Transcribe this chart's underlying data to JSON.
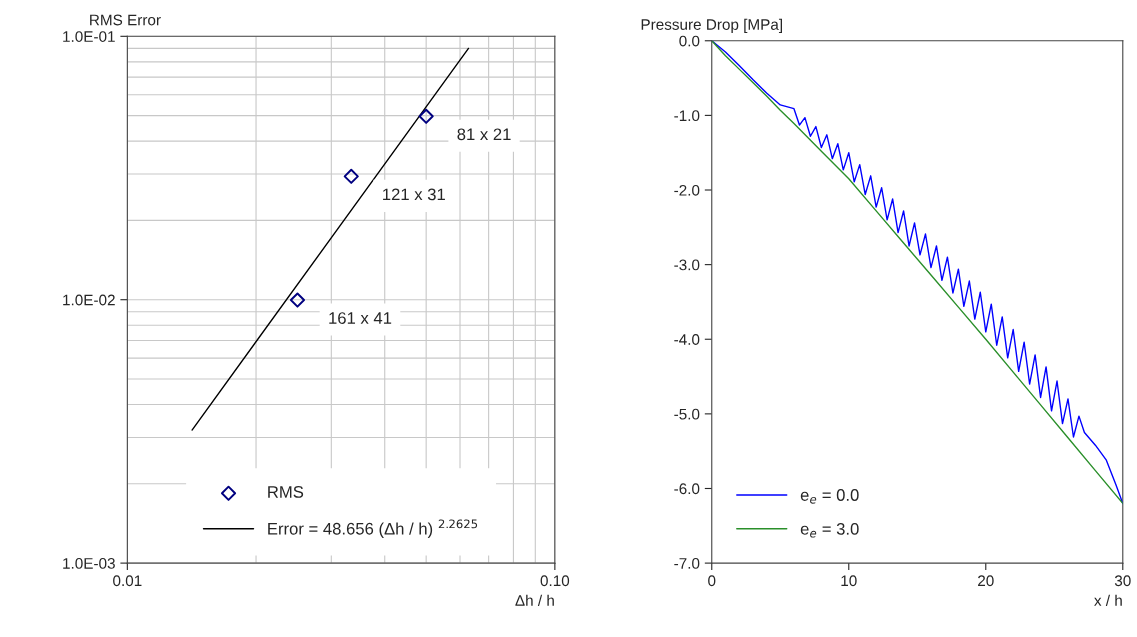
{
  "chart_data": [
    {
      "type": "scatter",
      "title": "RMS Error",
      "xlabel": "Δh / h",
      "log": "xy",
      "grid": true,
      "legend": "bottom",
      "xlim": [
        0.01,
        0.1
      ],
      "ylim": [
        0.001,
        0.1
      ],
      "xticks": [
        {
          "value": 0.01,
          "label": "0.01"
        },
        {
          "value": 0.1,
          "label": "0.10"
        }
      ],
      "yticks": [
        {
          "value": 0.001,
          "label": "1.0E-03"
        },
        {
          "value": 0.01,
          "label": "1.0E-02"
        },
        {
          "value": 0.1,
          "label": "1.0E-01"
        }
      ],
      "series": [
        {
          "name": "RMS",
          "type": "scatter",
          "marker": "diamond",
          "color": "#000080",
          "x": [
            0.025,
            0.0334,
            0.05
          ],
          "values": [
            0.00997,
            0.0294,
            0.0497
          ]
        },
        {
          "name": "Error = 48.656 (Δh / h) $^{2.2625}$",
          "type": "line",
          "marker": "none",
          "color": "#000000",
          "x": [
            0.01417,
            0.0628
          ],
          "values": [
            0.0032,
            0.09
          ]
        }
      ],
      "annotations": [
        {
          "text": "81 x 21",
          "x": 0.05,
          "y": 0.0497
        },
        {
          "text": "121 x 31",
          "x": 0.0334,
          "y": 0.0294
        },
        {
          "text": "161 x 41",
          "x": 0.025,
          "y": 0.00997
        }
      ]
    },
    {
      "type": "line",
      "title": "Pressure Drop [MPa]",
      "xlabel": "x / h",
      "grid": false,
      "legend": "bottom left",
      "marker": "none",
      "line_style": "solid",
      "xlim": [
        0,
        30
      ],
      "ylim": [
        -7,
        0
      ],
      "xticks": [
        0,
        10,
        20,
        30
      ],
      "yticks": [
        {
          "value": -7,
          "label": "-7.0"
        },
        {
          "value": -6,
          "label": "-6.0"
        },
        {
          "value": -5,
          "label": "-5.0"
        },
        {
          "value": -4,
          "label": "-4.0"
        },
        {
          "value": -3,
          "label": "-3.0"
        },
        {
          "value": -2,
          "label": "-2.0"
        },
        {
          "value": -1,
          "label": "-1.0"
        },
        {
          "value": 0,
          "label": "0.0"
        }
      ],
      "series": [
        {
          "name": "e$_{e}$ = 0.0",
          "color": "#0000ff",
          "x": [
            0,
            1,
            2,
            3,
            4,
            5,
            6.0,
            6.4,
            6.8,
            7.2,
            7.6,
            8.0,
            8.4,
            8.8,
            9.2,
            9.6,
            10.0,
            10.4,
            10.8,
            11.2,
            11.6,
            12.0,
            12.4,
            12.8,
            13.2,
            13.6,
            14.0,
            14.4,
            14.8,
            15.2,
            15.6,
            16.0,
            16.4,
            16.8,
            17.2,
            17.6,
            18.0,
            18.4,
            18.8,
            19.2,
            19.6,
            20.0,
            20.4,
            20.8,
            21.2,
            21.6,
            22.0,
            22.4,
            22.8,
            23.2,
            23.6,
            24.0,
            24.4,
            24.8,
            25.2,
            25.6,
            26.0,
            26.4,
            26.8,
            27.2,
            28.0,
            28.8,
            29.5,
            30
          ],
          "values": [
            0,
            -0.15,
            -0.33,
            -0.52,
            -0.7,
            -0.86,
            -0.91,
            -1.13,
            -1.03,
            -1.28,
            -1.15,
            -1.43,
            -1.26,
            -1.58,
            -1.38,
            -1.73,
            -1.5,
            -1.89,
            -1.66,
            -2.06,
            -1.81,
            -2.23,
            -1.97,
            -2.4,
            -2.12,
            -2.57,
            -2.28,
            -2.75,
            -2.44,
            -2.87,
            -2.59,
            -3.04,
            -2.75,
            -3.21,
            -2.9,
            -3.38,
            -3.06,
            -3.56,
            -3.22,
            -3.73,
            -3.37,
            -3.9,
            -3.53,
            -4.08,
            -3.7,
            -4.25,
            -3.87,
            -4.43,
            -4.04,
            -4.6,
            -4.21,
            -4.78,
            -4.37,
            -4.96,
            -4.56,
            -5.13,
            -4.8,
            -5.31,
            -5.03,
            -5.25,
            -5.42,
            -5.62,
            -5.95,
            -6.2
          ]
        },
        {
          "name": "e$_{e}$ = 3.0",
          "color": "#2a8f2a",
          "x": [
            0,
            1,
            2,
            3,
            4,
            5,
            6,
            8,
            10,
            12,
            14,
            16,
            18,
            20,
            22,
            24,
            26,
            28,
            30
          ],
          "values": [
            0,
            -0.2,
            -0.38,
            -0.56,
            -0.74,
            -0.93,
            -1.11,
            -1.48,
            -1.85,
            -2.28,
            -2.71,
            -3.14,
            -3.57,
            -4.0,
            -4.44,
            -4.88,
            -5.32,
            -5.76,
            -6.2
          ]
        }
      ]
    }
  ]
}
